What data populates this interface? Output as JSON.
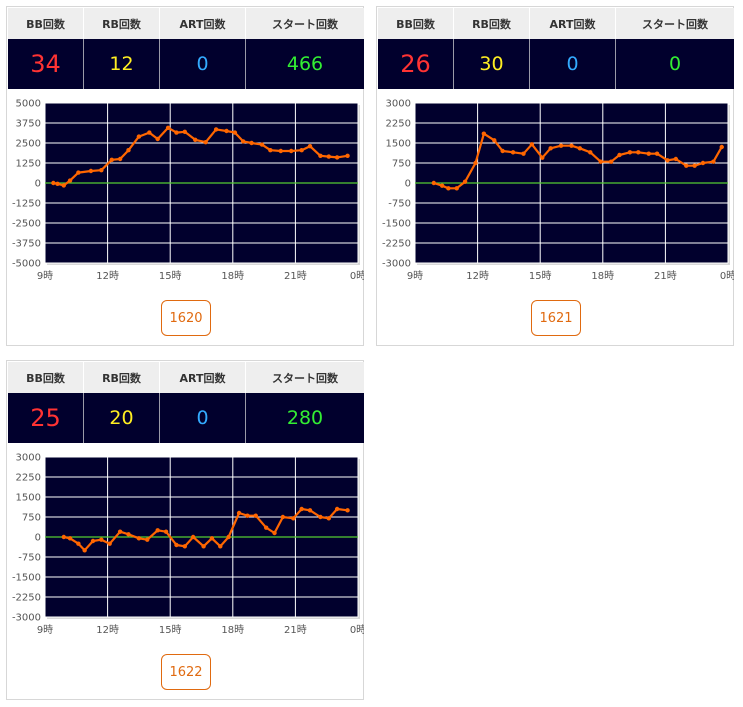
{
  "headers": {
    "bb": "BB回数",
    "rb": "RB回数",
    "art": "ART回数",
    "start": "スタート回数"
  },
  "machines": [
    {
      "stats": {
        "bb": "34",
        "rb": "12",
        "art": "0",
        "start": "466"
      },
      "button_label": "1620",
      "chart_data": {
        "type": "line",
        "x_ticks": [
          "9時",
          "12時",
          "15時",
          "18時",
          "21時",
          "0時"
        ],
        "y_ticks": [
          "5000",
          "3750",
          "2500",
          "1250",
          "0",
          "-1250",
          "-2500",
          "-3750",
          "-5000"
        ],
        "ylim": [
          -5000,
          5000
        ],
        "x_range_hours": [
          9,
          24
        ],
        "line_color": "#ff6600",
        "zero_line_color": "#55cc33",
        "series": [
          {
            "x": [
              9.4,
              9.6,
              9.9,
              10.2,
              10.6,
              11.2,
              11.7,
              12.2,
              12.6,
              13.0,
              13.5,
              14.0,
              14.4,
              14.9,
              15.3,
              15.7,
              16.2,
              16.7,
              17.2,
              17.7,
              18.1,
              18.5,
              18.9,
              19.4,
              19.8,
              20.3,
              20.8,
              21.3,
              21.7,
              22.2,
              22.6,
              23.0,
              23.5
            ],
            "y": [
              0,
              -50,
              -150,
              150,
              650,
              750,
              800,
              1450,
              1500,
              2050,
              2900,
              3150,
              2750,
              3450,
              3150,
              3200,
              2700,
              2550,
              3350,
              3250,
              3150,
              2600,
              2500,
              2400,
              2050,
              2000,
              2000,
              2050,
              2300,
              1700,
              1650,
              1600,
              1700
            ]
          }
        ]
      }
    },
    {
      "stats": {
        "bb": "26",
        "rb": "30",
        "art": "0",
        "start": "0"
      },
      "button_label": "1621",
      "chart_data": {
        "type": "line",
        "x_ticks": [
          "9時",
          "12時",
          "15時",
          "18時",
          "21時",
          "0時"
        ],
        "y_ticks": [
          "3000",
          "2250",
          "1500",
          "750",
          "0",
          "-750",
          "-1500",
          "-2250",
          "-3000"
        ],
        "ylim": [
          -3000,
          3000
        ],
        "x_range_hours": [
          9,
          24
        ],
        "line_color": "#ff6600",
        "zero_line_color": "#55cc33",
        "series": [
          {
            "x": [
              9.9,
              10.3,
              10.6,
              11.0,
              11.4,
              11.9,
              12.3,
              12.8,
              13.2,
              13.7,
              14.2,
              14.6,
              15.1,
              15.5,
              16.0,
              16.5,
              16.9,
              17.4,
              17.9,
              18.4,
              18.8,
              19.3,
              19.7,
              20.2,
              20.6,
              21.1,
              21.5,
              22.0,
              22.4,
              22.8,
              23.3,
              23.7
            ],
            "y": [
              0,
              -100,
              -200,
              -200,
              50,
              750,
              1850,
              1600,
              1200,
              1150,
              1100,
              1450,
              950,
              1300,
              1400,
              1400,
              1300,
              1150,
              800,
              800,
              1050,
              1150,
              1150,
              1100,
              1100,
              850,
              900,
              650,
              650,
              750,
              800,
              1350
            ]
          }
        ]
      }
    },
    {
      "stats": {
        "bb": "25",
        "rb": "20",
        "art": "0",
        "start": "280"
      },
      "button_label": "1622",
      "chart_data": {
        "type": "line",
        "x_ticks": [
          "9時",
          "12時",
          "15時",
          "18時",
          "21時",
          "0時"
        ],
        "y_ticks": [
          "3000",
          "2250",
          "1500",
          "750",
          "0",
          "-750",
          "-1500",
          "-2250",
          "-3000"
        ],
        "ylim": [
          -3000,
          3000
        ],
        "x_range_hours": [
          9,
          24
        ],
        "line_color": "#ff6600",
        "zero_line_color": "#55cc33",
        "series": [
          {
            "x": [
              9.9,
              10.2,
              10.6,
              10.9,
              11.3,
              11.7,
              12.1,
              12.6,
              13.0,
              13.5,
              13.9,
              14.4,
              14.8,
              15.3,
              15.7,
              16.1,
              16.6,
              17.0,
              17.4,
              17.8,
              18.3,
              18.7,
              19.1,
              19.6,
              20.0,
              20.4,
              20.9,
              21.3,
              21.7,
              22.2,
              22.6,
              23.0,
              23.5
            ],
            "y": [
              0,
              -50,
              -250,
              -500,
              -150,
              -100,
              -250,
              200,
              100,
              -50,
              -100,
              250,
              200,
              -300,
              -350,
              0,
              -350,
              -50,
              -350,
              0,
              900,
              800,
              800,
              350,
              150,
              750,
              700,
              1050,
              1000,
              750,
              700,
              1050,
              1000
            ]
          }
        ]
      }
    }
  ]
}
